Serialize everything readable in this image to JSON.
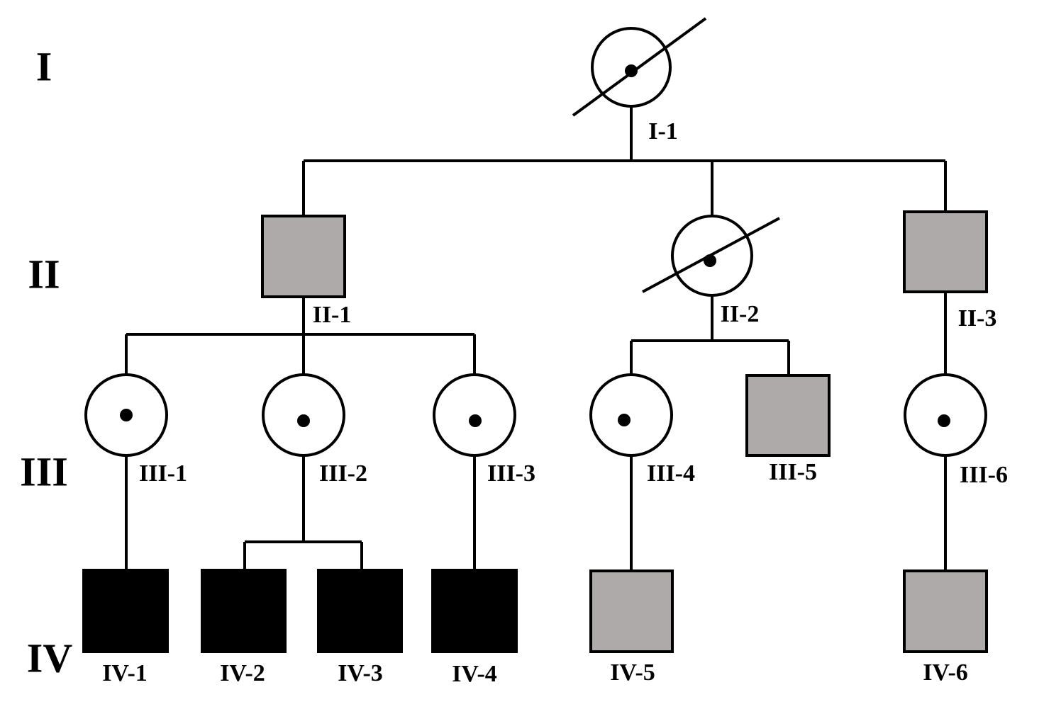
{
  "generations": [
    "I",
    "II",
    "III",
    "IV"
  ],
  "individuals": [
    "I-1",
    "II-1",
    "II-2",
    "II-3",
    "III-1",
    "III-2",
    "III-3",
    "III-4",
    "III-5",
    "III-6",
    "IV-1",
    "IV-2",
    "IV-3",
    "IV-4",
    "IV-5",
    "IV-6"
  ]
}
